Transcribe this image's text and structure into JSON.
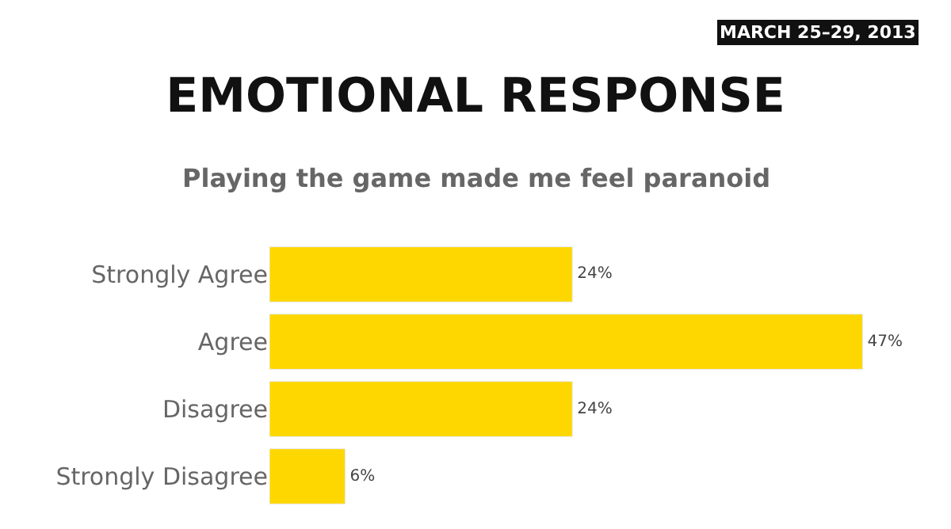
{
  "chart_data": {
    "type": "bar",
    "orientation": "horizontal",
    "title": "EMOTIONAL RESPONSE",
    "subtitle": "Playing the game made me feel paranoid",
    "annotations": [
      "MARCH 25–29, 2013"
    ],
    "categories": [
      "Strongly Agree",
      "Agree",
      "Disagree",
      "Strongly Disagree"
    ],
    "values": [
      24,
      47,
      24,
      6
    ],
    "value_labels": [
      "24%",
      "47%",
      "24%",
      "6%"
    ],
    "color": "#ffd700",
    "legend": false
  }
}
